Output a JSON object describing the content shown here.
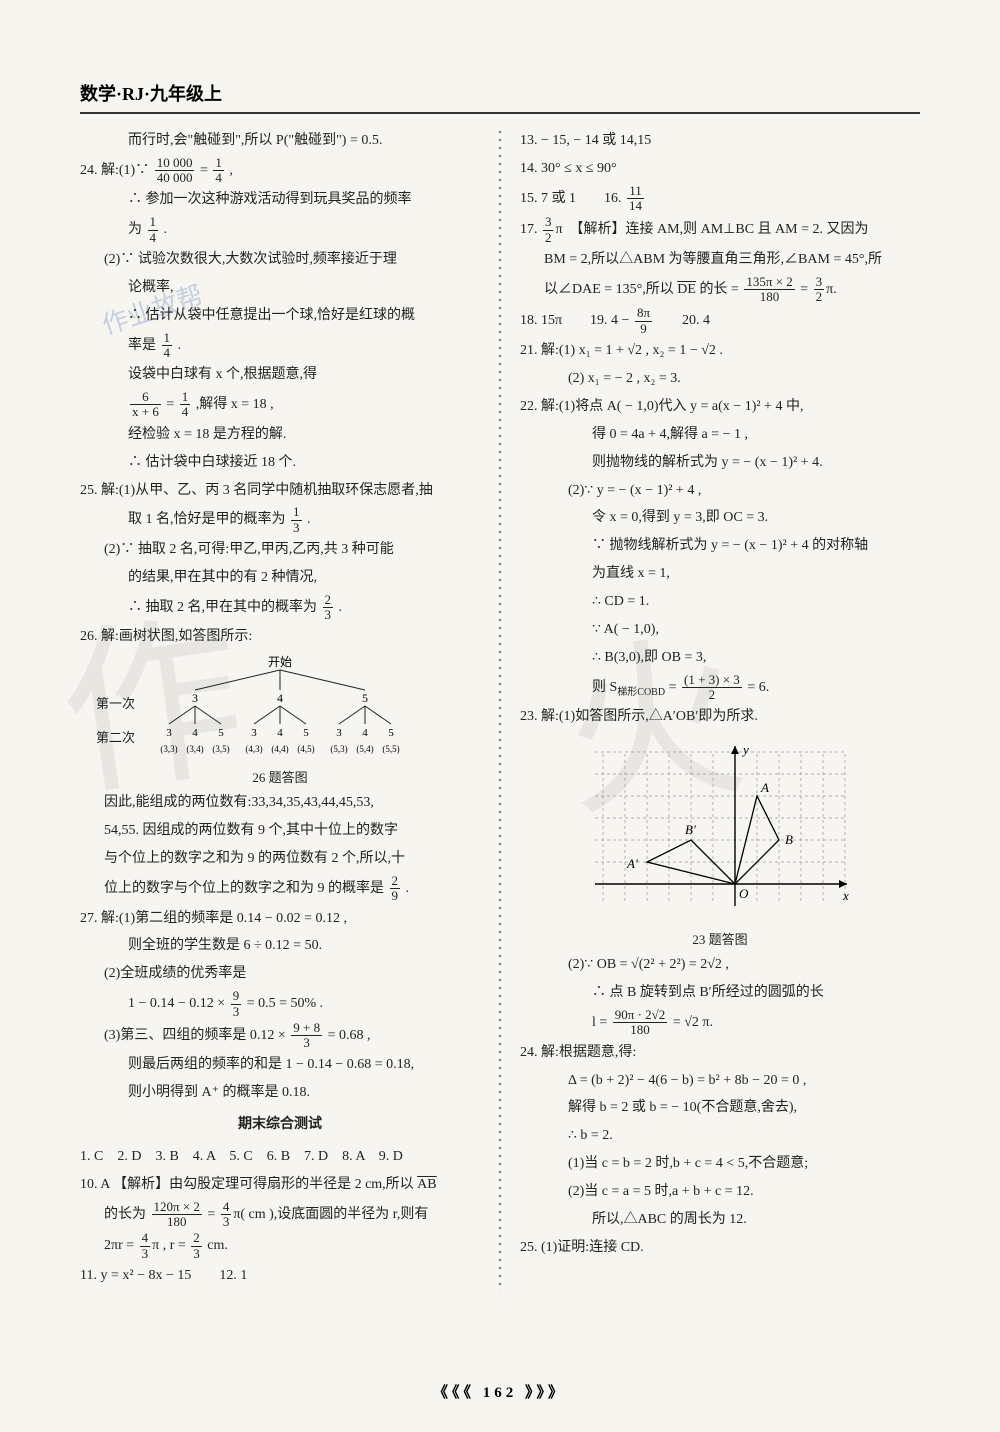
{
  "header": "数学·RJ·九年级上",
  "page_num": "《《《 162 》》》",
  "watermark_chars": [
    "作",
    "火"
  ],
  "stamp": "作业故帮",
  "colors": {
    "bg": "#f7f5f0",
    "text": "#222222",
    "divider_dot": "#888888",
    "watermark": "rgba(120,120,120,0.12)"
  },
  "tree": {
    "root_label": "开始",
    "row1_label": "第一次",
    "row2_label": "第二次",
    "caption": "26 题答图",
    "level1": [
      "3",
      "4",
      "5"
    ],
    "level2": [
      "3",
      "4",
      "5",
      "3",
      "4",
      "5",
      "3",
      "4",
      "5"
    ],
    "leaves": [
      "(3,3)",
      "(3,4)",
      "(3,5)",
      "(4,3)",
      "(4,4)",
      "(4,5)",
      "(5,3)",
      "(5,4)",
      "(5,5)"
    ]
  },
  "coord": {
    "caption": "23 题答图",
    "pts": {
      "A": "A",
      "Aprime": "A′",
      "B": "B",
      "Bprime": "B′",
      "O": "O",
      "x": "x",
      "y": "y"
    }
  },
  "left": [
    {
      "cls": "indent2",
      "t": "而行时,会\"触碰到\",所以 P(\"触碰到\") = 0.5."
    },
    {
      "cls": "",
      "html": "24. 解:(1)∵ <span class='frac'><span class='num'>10 000</span><span class='den'>40 000</span></span> = <span class='frac'><span class='num'>1</span><span class='den'>4</span></span> ,"
    },
    {
      "cls": "indent2",
      "t": "∴ 参加一次这种游戏活动得到玩具奖品的频率"
    },
    {
      "cls": "indent2",
      "html": "为 <span class='frac'><span class='num'>1</span><span class='den'>4</span></span> ."
    },
    {
      "cls": "indent1",
      "t": "(2)∵ 试验次数很大,大数次试验时,频率接近于理"
    },
    {
      "cls": "indent2",
      "t": "论概率,"
    },
    {
      "cls": "indent2",
      "t": "∴ 估计从袋中任意提出一个球,恰好是红球的概"
    },
    {
      "cls": "indent2",
      "html": "率是 <span class='frac'><span class='num'>1</span><span class='den'>4</span></span> ."
    },
    {
      "cls": "indent2",
      "t": "设袋中白球有 x 个,根据题意,得"
    },
    {
      "cls": "indent2",
      "html": "<span class='frac'><span class='num'>6</span><span class='den'>x + 6</span></span> = <span class='frac'><span class='num'>1</span><span class='den'>4</span></span> ,解得 x = 18 ,"
    },
    {
      "cls": "indent2",
      "t": "经检验 x = 18 是方程的解."
    },
    {
      "cls": "indent2",
      "t": "∴ 估计袋中白球接近 18 个."
    },
    {
      "cls": "",
      "t": "25. 解:(1)从甲、乙、丙 3 名同学中随机抽取环保志愿者,抽"
    },
    {
      "cls": "indent2",
      "html": "取 1 名,恰好是甲的概率为 <span class='frac'><span class='num'>1</span><span class='den'>3</span></span> ."
    },
    {
      "cls": "indent1",
      "t": "(2)∵ 抽取 2 名,可得:甲乙,甲丙,乙丙,共 3 种可能"
    },
    {
      "cls": "indent2",
      "t": "的结果,甲在其中的有 2 种情况,"
    },
    {
      "cls": "indent2",
      "html": "∴ 抽取 2 名,甲在其中的概率为 <span class='frac'><span class='num'>2</span><span class='den'>3</span></span> ."
    },
    {
      "cls": "",
      "t": "26. 解:画树状图,如答图所示:"
    },
    {
      "cls": "",
      "tree": true
    },
    {
      "cls": "indent1",
      "t": "因此,能组成的两位数有:33,34,35,43,44,45,53,"
    },
    {
      "cls": "indent1",
      "t": "54,55. 因组成的两位数有 9 个,其中十位上的数字"
    },
    {
      "cls": "indent1",
      "t": "与个位上的数字之和为 9 的两位数有 2 个,所以,十"
    },
    {
      "cls": "indent1",
      "html": "位上的数字与个位上的数字之和为 9 的概率是 <span class='frac'><span class='num'>2</span><span class='den'>9</span></span> ."
    },
    {
      "cls": "",
      "t": "27. 解:(1)第二组的频率是 0.14 − 0.02 = 0.12 ,"
    },
    {
      "cls": "indent2",
      "t": "则全班的学生数是 6 ÷ 0.12 = 50."
    },
    {
      "cls": "indent1",
      "t": "(2)全班成绩的优秀率是"
    },
    {
      "cls": "indent2",
      "html": "1 − 0.14 − 0.12 × <span class='frac'><span class='num'>9</span><span class='den'>3</span></span> = 0.5 = 50% ."
    },
    {
      "cls": "indent1",
      "html": "(3)第三、四组的频率是 0.12 × <span class='frac'><span class='num'>9 + 8</span><span class='den'>3</span></span> = 0.68 ,"
    },
    {
      "cls": "indent2",
      "t": "则最后两组的频率的和是 1 − 0.14 − 0.68 = 0.18,"
    },
    {
      "cls": "indent2",
      "t": "则小明得到 A⁺ 的概率是 0.18."
    },
    {
      "cls": "",
      "section": "期末综合测试"
    },
    {
      "cls": "",
      "t": "1. C　2. D　3. B　4. A　5. C　6. B　7. D　8. A　9. D"
    },
    {
      "cls": "",
      "html": "10. A 【解析】由勾股定理可得扇形的半径是 2 cm,所以 <span class='arc'>AB</span>"
    },
    {
      "cls": "indent1",
      "html": "的长为 <span class='frac'><span class='num'>120π × 2</span><span class='den'>180</span></span> = <span class='frac'><span class='num'>4</span><span class='den'>3</span></span>π( cm ),设底面圆的半径为 r,则有"
    },
    {
      "cls": "indent1",
      "html": "2πr = <span class='frac'><span class='num'>4</span><span class='den'>3</span></span>π , r = <span class='frac'><span class='num'>2</span><span class='den'>3</span></span> cm."
    },
    {
      "cls": "",
      "t": "11. y = x² − 8x − 15　　12. 1"
    }
  ],
  "right": [
    {
      "cls": "",
      "t": "13. − 15, − 14 或 14,15"
    },
    {
      "cls": "",
      "t": "14. 30° ≤ x ≤ 90°"
    },
    {
      "cls": "",
      "html": "15. 7 或 1　　16. <span class='frac'><span class='num'>11</span><span class='den'>14</span></span>"
    },
    {
      "cls": "",
      "html": "17. <span class='frac'><span class='num'>3</span><span class='den'>2</span></span>π　【解析】连接 AM,则 AM⊥BC 且 AM = 2. 又因为"
    },
    {
      "cls": "indent1",
      "t": "BM = 2,所以△ABM 为等腰直角三角形,∠BAM = 45°,所"
    },
    {
      "cls": "indent1",
      "html": "以∠DAE = 135°,所以 <span class='arc'>DE</span> 的长 = <span class='frac'><span class='num'>135π × 2</span><span class='den'>180</span></span> = <span class='frac'><span class='num'>3</span><span class='den'>2</span></span>π."
    },
    {
      "cls": "",
      "html": "18. 15π　　19. 4 − <span class='frac'><span class='num'>8π</span><span class='den'>9</span></span>　　20. 4"
    },
    {
      "cls": "",
      "t": "21. 解:(1) x₁ = 1 + √2 , x₂ = 1 − √2 ."
    },
    {
      "cls": "indent2",
      "t": "(2) x₁ = − 2 , x₂ = 3."
    },
    {
      "cls": "",
      "t": "22. 解:(1)将点 A( − 1,0)代入 y = a(x − 1)² + 4 中,"
    },
    {
      "cls": "indent3",
      "t": "得 0 = 4a + 4,解得 a = − 1 ,"
    },
    {
      "cls": "indent3",
      "t": "则抛物线的解析式为 y = − (x − 1)² + 4."
    },
    {
      "cls": "indent2",
      "t": "(2)∵ y = − (x − 1)² + 4 ,"
    },
    {
      "cls": "indent3",
      "t": "令 x = 0,得到 y = 3,即 OC = 3."
    },
    {
      "cls": "indent3",
      "t": "∵ 抛物线解析式为 y = − (x − 1)² + 4 的对称轴"
    },
    {
      "cls": "indent3",
      "t": "为直线 x = 1,"
    },
    {
      "cls": "indent3",
      "t": "∴ CD = 1."
    },
    {
      "cls": "indent3",
      "t": "∵ A( − 1,0),"
    },
    {
      "cls": "indent3",
      "t": "∴ B(3,0),即 OB = 3,"
    },
    {
      "cls": "indent3",
      "html": "则 S<sub>梯形COBD</sub> = <span class='frac'><span class='num'>(1 + 3) × 3</span><span class='den'>2</span></span> = 6."
    },
    {
      "cls": "",
      "t": "23. 解:(1)如答图所示,△A′OB′即为所求."
    },
    {
      "cls": "",
      "coord": true
    },
    {
      "cls": "indent2",
      "t": "(2)∵ OB = √(2² + 2²) = 2√2 ,"
    },
    {
      "cls": "indent3",
      "t": "∴ 点 B 旋转到点 B′所经过的圆弧的长"
    },
    {
      "cls": "indent3",
      "html": "l = <span class='frac'><span class='num'>90π · 2√2</span><span class='den'>180</span></span> = √2 π."
    },
    {
      "cls": "",
      "t": "24. 解:根据题意,得:"
    },
    {
      "cls": "indent2",
      "t": "Δ = (b + 2)² − 4(6 − b) = b² + 8b − 20 = 0 ,"
    },
    {
      "cls": "indent2",
      "t": "解得 b = 2 或 b = − 10(不合题意,舍去),"
    },
    {
      "cls": "indent2",
      "t": "∴ b = 2."
    },
    {
      "cls": "indent2",
      "t": "(1)当 c = b = 2 时,b + c = 4 < 5,不合题意;"
    },
    {
      "cls": "indent2",
      "t": "(2)当 c = a = 5 时,a + b + c = 12."
    },
    {
      "cls": "indent3",
      "t": "所以,△ABC 的周长为 12."
    },
    {
      "cls": "",
      "t": "25. (1)证明:连接 CD."
    }
  ]
}
